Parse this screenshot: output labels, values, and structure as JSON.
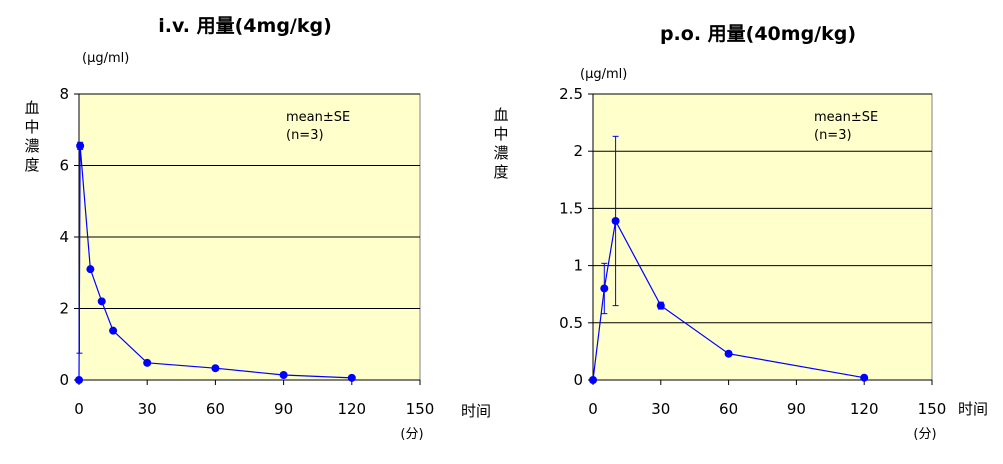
{
  "chart_data": [
    {
      "type": "line",
      "title": "i.v. 用量(4mg/kg)",
      "unit_label": "(μg/ml)",
      "ylabel": "血中濃度",
      "xlabel": "时间",
      "x_unit": "(分)",
      "annotation": [
        "mean±SE",
        "(n=3)"
      ],
      "x_ticks": [
        0,
        30,
        60,
        90,
        120,
        150
      ],
      "y_ticks": [
        0,
        2,
        4,
        6,
        8
      ],
      "xlim": [
        0,
        150
      ],
      "ylim": [
        0,
        8
      ],
      "grid": "horizontal",
      "series": [
        {
          "x": [
            0,
            0.5,
            5,
            10,
            15,
            30,
            60,
            90,
            120
          ],
          "y": [
            0,
            6.55,
            3.1,
            2.2,
            1.38,
            0.48,
            0.33,
            0.14,
            0.06
          ],
          "err": [
            0,
            0.1,
            0,
            0,
            0,
            0,
            0,
            0,
            0
          ]
        }
      ],
      "extra_error_bar": {
        "x": 0.2,
        "low": 0.75,
        "high": 6.55
      }
    },
    {
      "type": "line",
      "title": "p.o. 用量(40mg/kg)",
      "unit_label": "(μg/ml)",
      "ylabel": "血中濃度",
      "xlabel": "时间",
      "x_unit": "(分)",
      "annotation": [
        "mean±SE",
        "(n=3)"
      ],
      "x_ticks": [
        0,
        30,
        60,
        90,
        120,
        150
      ],
      "y_ticks": [
        0,
        0.5,
        1,
        1.5,
        2,
        2.5
      ],
      "xlim": [
        0,
        150
      ],
      "ylim": [
        0,
        2.5
      ],
      "grid": "horizontal",
      "series": [
        {
          "x": [
            0,
            5,
            10,
            30,
            60,
            120
          ],
          "y": [
            0,
            0.8,
            1.39,
            0.65,
            0.23,
            0.02
          ],
          "err": [
            0,
            0.22,
            0.74,
            0.03,
            0,
            0
          ]
        }
      ]
    }
  ],
  "colors": {
    "plot_bg": "#ffffcc",
    "series": "#0000ff",
    "grid": "#000000"
  }
}
